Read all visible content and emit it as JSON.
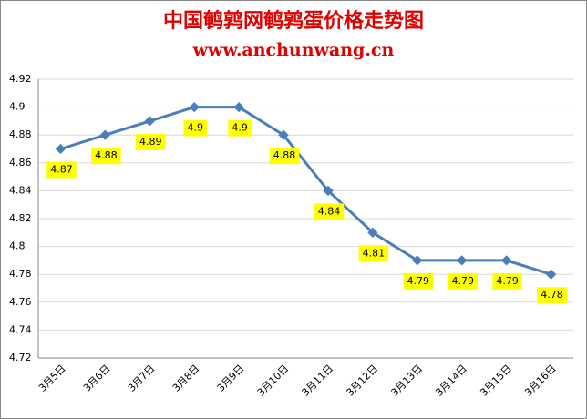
{
  "chart_data": {
    "type": "line",
    "title": "中国鹌鹑网鹌鹑蛋价格走势图",
    "subtitle": "www.anchunwang.cn",
    "categories": [
      "3月5日",
      "3月6日",
      "3月7日",
      "3月8日",
      "3月9日",
      "3月10日",
      "3月11日",
      "3月12日",
      "3月13日",
      "3月14日",
      "3月15日",
      "3月16日"
    ],
    "values": [
      4.87,
      4.88,
      4.89,
      4.9,
      4.9,
      4.88,
      4.84,
      4.81,
      4.79,
      4.79,
      4.79,
      4.78
    ],
    "color": "#4a7ebb",
    "label_color": "#ffff00",
    "ylim": [
      4.72,
      4.92
    ],
    "yticks": [
      4.72,
      4.74,
      4.76,
      4.78,
      4.8,
      4.82,
      4.84,
      4.86,
      4.88,
      4.9,
      4.92
    ],
    "grid": true
  }
}
